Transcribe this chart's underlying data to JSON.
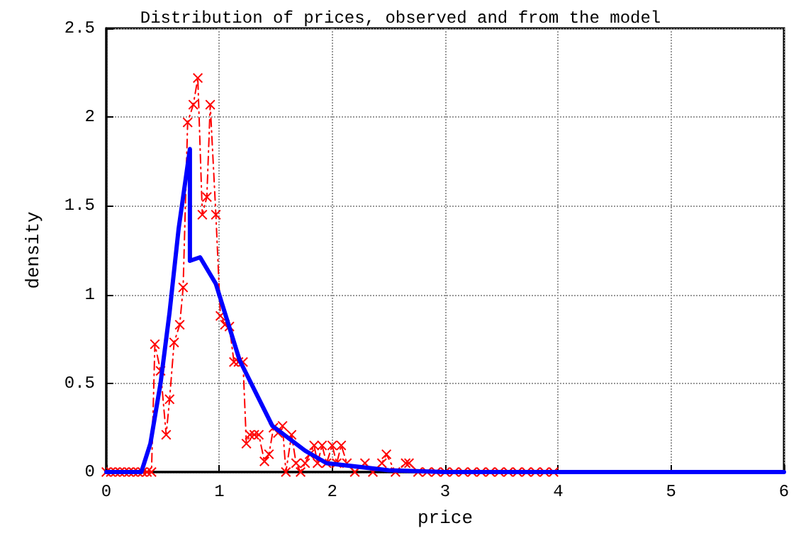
{
  "chart_data": {
    "type": "line",
    "title": "Distribution of prices, observed and from the model",
    "xlabel": "price",
    "ylabel": "density",
    "xlim": [
      0,
      6
    ],
    "xticks": [
      0,
      1,
      2,
      3,
      4,
      5,
      6
    ],
    "ylim": [
      0,
      2.5
    ],
    "yticks": [
      0,
      0.5,
      1,
      1.5,
      2,
      2.5
    ],
    "grid": true,
    "series": [
      {
        "color": "#ff0000",
        "marker": "cross",
        "line_style": "dashed",
        "x": [
          0,
          0.04,
          0.08,
          0.12,
          0.16,
          0.2,
          0.24,
          0.28,
          0.32,
          0.36,
          0.4,
          0.43,
          0.48,
          0.53,
          0.56,
          0.6,
          0.65,
          0.68,
          0.72,
          0.77,
          0.81,
          0.85,
          0.89,
          0.92,
          0.97,
          1.01,
          1.05,
          1.09,
          1.13,
          1.17,
          1.21,
          1.24,
          1.27,
          1.31,
          1.35,
          1.4,
          1.44,
          1.48,
          1.52,
          1.56,
          1.59,
          1.64,
          1.68,
          1.72,
          1.76,
          1.8,
          1.84,
          1.87,
          1.91,
          1.95,
          2.0,
          2.04,
          2.08,
          2.13,
          2.2,
          2.29,
          2.36,
          2.44,
          2.48,
          2.56,
          2.65,
          2.68,
          2.76,
          2.84,
          2.92,
          3.0,
          3.08,
          3.16,
          3.24,
          3.32,
          3.4,
          3.48,
          3.56,
          3.64,
          3.72,
          3.8,
          3.88,
          3.96
        ],
        "values": [
          0,
          0,
          0,
          0,
          0,
          0,
          0,
          0,
          0,
          0,
          0,
          0.72,
          0.57,
          0.21,
          0.41,
          0.73,
          0.83,
          1.04,
          1.97,
          2.07,
          2.22,
          1.45,
          1.55,
          2.07,
          1.45,
          0.88,
          0.83,
          0.82,
          0.62,
          0.62,
          0.62,
          0.16,
          0.21,
          0.21,
          0.21,
          0.06,
          0.1,
          0.25,
          0.22,
          0.26,
          0,
          0.21,
          0.05,
          0,
          0.05,
          0.1,
          0.15,
          0.05,
          0.15,
          0.05,
          0.15,
          0.05,
          0.15,
          0.05,
          0,
          0.05,
          0,
          0.05,
          0.1,
          0,
          0.05,
          0.05,
          0,
          0,
          0,
          0,
          0,
          0,
          0,
          0,
          0,
          0,
          0,
          0,
          0,
          0,
          0,
          0
        ]
      },
      {
        "color": "#0000ff",
        "marker": "none",
        "line_style": "solid",
        "x": [
          0,
          0.31,
          0.39,
          0.48,
          0.56,
          0.64,
          0.74,
          0.74,
          0.83,
          0.97,
          1.18,
          1.47,
          1.76,
          1.95,
          2.5,
          3,
          6
        ],
        "values": [
          0,
          0,
          0.16,
          0.5,
          0.9,
          1.37,
          1.82,
          1.19,
          1.21,
          1.06,
          0.63,
          0.26,
          0.12,
          0.05,
          0.01,
          0,
          0
        ]
      }
    ]
  }
}
